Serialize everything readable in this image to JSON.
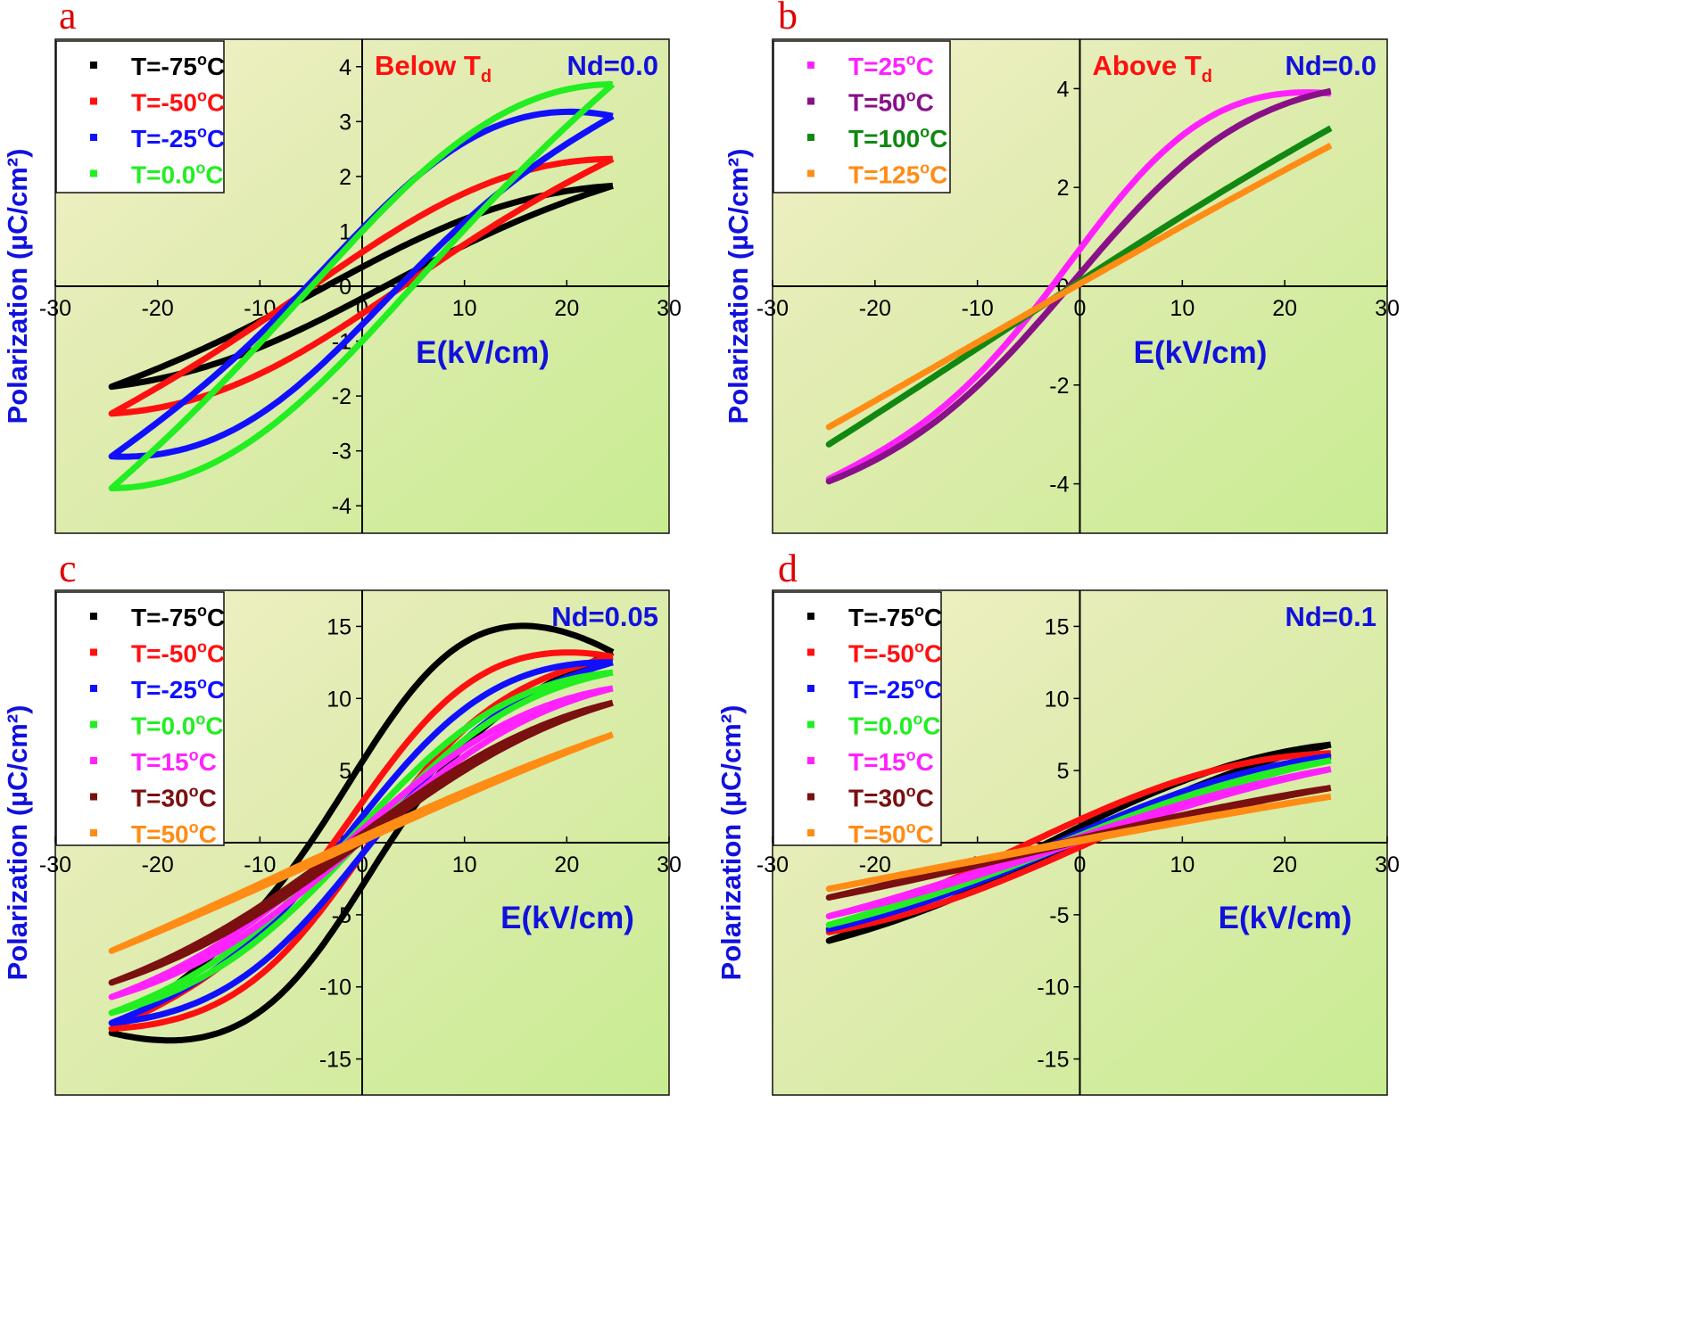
{
  "figure": {
    "ylabel": "Polarization (µC/cm²)",
    "xlabel": "E(kV/cm)"
  },
  "chart_data": [
    {
      "panel": "a",
      "type": "line",
      "title": "Nd=0.0",
      "note": "Below T",
      "note_sub": "d",
      "xlabel": "E(kV/cm)",
      "ylabel": "Polarization (µC/cm²)",
      "xlim": [
        -30,
        30
      ],
      "ylim": [
        -4.5,
        4.5
      ],
      "xticks": [
        -30,
        -20,
        -10,
        0,
        10,
        20,
        30
      ],
      "yticks": [
        -4,
        -3,
        -2,
        -1,
        0,
        1,
        2,
        3,
        4
      ],
      "grid": false,
      "legend_position": "top-left",
      "Emax": 24.5,
      "series": [
        {
          "name": "T=-75°C",
          "color": "#000000",
          "Pmax": 1.83,
          "Pr": 0.35,
          "Pneg": -0.22,
          "sharp": 1.0
        },
        {
          "name": "T=-50°C",
          "color": "#ff1010",
          "Pmax": 2.32,
          "Pr": 0.62,
          "Pneg": -0.5,
          "sharp": 1.0
        },
        {
          "name": "T=-25°C",
          "color": "#1010ff",
          "Pmax": 3.1,
          "Pr": 1.05,
          "Pneg": -0.7,
          "sharp": 1.3
        },
        {
          "name": "T=0.0°C",
          "color": "#22ee22",
          "Pmax": 3.68,
          "Pr": 1.0,
          "Pneg": -1.0,
          "sharp": 1.0
        }
      ]
    },
    {
      "panel": "b",
      "type": "line",
      "title": "Nd=0.0",
      "note": "Above T",
      "note_sub": "d",
      "xlabel": "E(kV/cm)",
      "ylabel": "Polarization (µC/cm²)",
      "xlim": [
        -30,
        30
      ],
      "ylim": [
        -5,
        5
      ],
      "xticks": [
        -30,
        -20,
        -10,
        0,
        10,
        20,
        30
      ],
      "yticks": [
        -4,
        -2,
        0,
        2,
        4
      ],
      "grid": false,
      "legend_position": "top-left",
      "Emax": 24.5,
      "series": [
        {
          "name": "T=25°C",
          "color": "#ff22ff",
          "Pmax": 3.9,
          "Pr": 0.75,
          "Pneg": 0.75,
          "sharp": 1.6
        },
        {
          "name": "T=50°C",
          "color": "#881188",
          "Pmax": 3.95,
          "Pr": 0.25,
          "Pneg": 0.25,
          "sharp": 1.3
        },
        {
          "name": "T=100°C",
          "color": "#118811",
          "Pmax": 3.2,
          "Pr": 0.1,
          "Pneg": 0.1,
          "sharp": 0.3
        },
        {
          "name": "T=125°C",
          "color": "#ff8c14",
          "Pmax": 2.85,
          "Pr": 0.05,
          "Pneg": 0.05,
          "sharp": 0.2
        }
      ]
    },
    {
      "panel": "c",
      "type": "line",
      "title": "Nd=0.05",
      "xlabel": "E(kV/cm)",
      "ylabel": "Polarization (µC/cm²)",
      "xlim": [
        -30,
        30
      ],
      "ylim": [
        -17.5,
        17.5
      ],
      "xticks": [
        -30,
        -20,
        -10,
        0,
        10,
        20,
        30
      ],
      "yticks": [
        -15,
        -10,
        -5,
        0,
        5,
        10,
        15
      ],
      "grid": false,
      "legend_position": "top-left",
      "Emax": 24.5,
      "series": [
        {
          "name": "T=-75°C",
          "color": "#000000",
          "Pmax": 13.2,
          "Pr": 5.6,
          "Pneg": -3.0,
          "sharp": 2.0
        },
        {
          "name": "T=-50°C",
          "color": "#ff1010",
          "Pmax": 12.9,
          "Pr": 2.8,
          "Pneg": -0.8,
          "sharp": 1.8
        },
        {
          "name": "T=-25°C",
          "color": "#1010ff",
          "Pmax": 12.5,
          "Pr": 1.8,
          "Pneg": -0.8,
          "sharp": 1.6
        },
        {
          "name": "T=0.0°C",
          "color": "#22ee22",
          "Pmax": 11.8,
          "Pr": 1.2,
          "Pneg": 0.3,
          "sharp": 1.4
        },
        {
          "name": "T=15°C",
          "color": "#ff22ff",
          "Pmax": 10.7,
          "Pr": 0.9,
          "Pneg": 0.2,
          "sharp": 1.2
        },
        {
          "name": "T=30°C",
          "color": "#7a1010",
          "Pmax": 9.7,
          "Pr": 0.6,
          "Pneg": 0.1,
          "sharp": 1.0
        },
        {
          "name": "T=50°C",
          "color": "#ff8c14",
          "Pmax": 7.5,
          "Pr": 0.4,
          "Pneg": 0.1,
          "sharp": 0.4
        }
      ]
    },
    {
      "panel": "d",
      "type": "line",
      "title": "Nd=0.1",
      "xlabel": "E(kV/cm)",
      "ylabel": "Polarization (µC/cm²)",
      "xlim": [
        -30,
        30
      ],
      "ylim": [
        -17.5,
        17.5
      ],
      "xticks": [
        -30,
        -20,
        -10,
        0,
        10,
        20,
        30
      ],
      "yticks": [
        -15,
        -10,
        -5,
        0,
        5,
        10,
        15
      ],
      "grid": false,
      "legend_position": "top-left",
      "Emax": 24.5,
      "series": [
        {
          "name": "T=-75°C",
          "color": "#000000",
          "Pmax": 6.8,
          "Pr": 1.1,
          "Pneg": 0.2,
          "sharp": 0.9
        },
        {
          "name": "T=-50°C",
          "color": "#ff1010",
          "Pmax": 6.2,
          "Pr": 1.6,
          "Pneg": -0.3,
          "sharp": 0.9
        },
        {
          "name": "T=-25°C",
          "color": "#1010ff",
          "Pmax": 6.0,
          "Pr": 0.7,
          "Pneg": 0.2,
          "sharp": 0.9
        },
        {
          "name": "T=0.0°C",
          "color": "#22ee22",
          "Pmax": 5.7,
          "Pr": 0.5,
          "Pneg": 0.2,
          "sharp": 0.8
        },
        {
          "name": "T=15°C",
          "color": "#ff22ff",
          "Pmax": 5.1,
          "Pr": 0.4,
          "Pneg": 0.1,
          "sharp": 0.7
        },
        {
          "name": "T=30°C",
          "color": "#7a1010",
          "Pmax": 3.8,
          "Pr": 0.3,
          "Pneg": 0.1,
          "sharp": 0.5
        },
        {
          "name": "T=50°C",
          "color": "#ff8c14",
          "Pmax": 3.2,
          "Pr": 0.2,
          "Pneg": 0.1,
          "sharp": 0.3
        }
      ]
    }
  ]
}
